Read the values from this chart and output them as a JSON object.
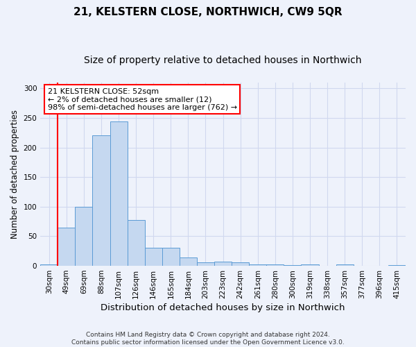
{
  "title": "21, KELSTERN CLOSE, NORTHWICH, CW9 5QR",
  "subtitle": "Size of property relative to detached houses in Northwich",
  "xlabel": "Distribution of detached houses by size in Northwich",
  "ylabel": "Number of detached properties",
  "categories": [
    "30sqm",
    "49sqm",
    "69sqm",
    "88sqm",
    "107sqm",
    "126sqm",
    "146sqm",
    "165sqm",
    "184sqm",
    "203sqm",
    "223sqm",
    "242sqm",
    "261sqm",
    "280sqm",
    "300sqm",
    "319sqm",
    "338sqm",
    "357sqm",
    "377sqm",
    "396sqm",
    "415sqm"
  ],
  "values": [
    3,
    65,
    100,
    221,
    244,
    78,
    31,
    31,
    14,
    6,
    7,
    6,
    3,
    2,
    1,
    3,
    0,
    3,
    0,
    0,
    1
  ],
  "bar_color": "#c5d8f0",
  "bar_edge_color": "#5b9bd5",
  "ylim": [
    0,
    310
  ],
  "yticks": [
    0,
    50,
    100,
    150,
    200,
    250,
    300
  ],
  "annotation_title": "21 KELSTERN CLOSE: 52sqm",
  "annotation_line1": "← 2% of detached houses are smaller (12)",
  "annotation_line2": "98% of semi-detached houses are larger (762) →",
  "footer_line1": "Contains HM Land Registry data © Crown copyright and database right 2024.",
  "footer_line2": "Contains public sector information licensed under the Open Government Licence v3.0.",
  "background_color": "#eef2fb",
  "grid_color": "#d0d8ef",
  "title_fontsize": 11,
  "subtitle_fontsize": 10,
  "ylabel_fontsize": 8.5,
  "xlabel_fontsize": 9.5,
  "tick_fontsize": 7.5,
  "footer_fontsize": 6.5
}
